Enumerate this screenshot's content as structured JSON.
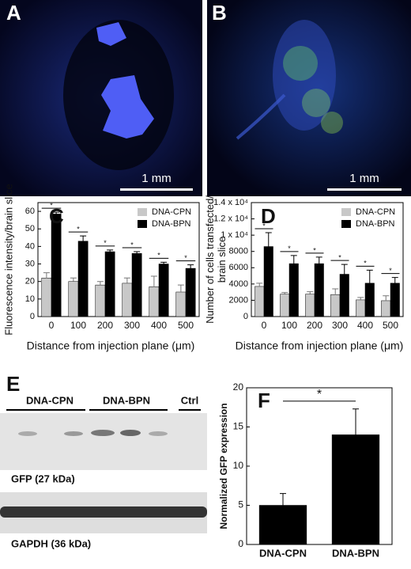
{
  "panels": {
    "A": {
      "label": "A",
      "scale_bar": "1 mm"
    },
    "B": {
      "label": "B",
      "scale_bar": "1 mm"
    },
    "E": {
      "label": "E",
      "lanes": [
        "DNA-CPN",
        "DNA-BPN",
        "Ctrl"
      ],
      "bands": [
        "GFP (27 kDa)",
        "GAPDH (36 kDa)"
      ]
    }
  },
  "chart_data": [
    {
      "type": "bar",
      "label": "C",
      "y_label": "Fluorescence intensity/brain slice",
      "x_label": "Distance from injection plane (μm)",
      "categories": [
        "0",
        "100",
        "200",
        "300",
        "400",
        "500"
      ],
      "series": [
        {
          "name": "DNA-CPN",
          "color": "#c8c8c8",
          "values": [
            22,
            20,
            18,
            19,
            17,
            14
          ],
          "errors": [
            3,
            2,
            2,
            3,
            6,
            4
          ]
        },
        {
          "name": "DNA-BPN",
          "color": "#000000",
          "values": [
            58.5,
            43,
            37,
            36,
            30,
            27.5
          ],
          "errors": [
            1,
            3,
            1,
            1,
            1,
            2
          ]
        }
      ],
      "annotations": [
        "*",
        "*",
        "*",
        "*",
        "*",
        "*"
      ],
      "ylim": [
        0,
        65
      ],
      "yticks": [
        0,
        10,
        20,
        30,
        40,
        50,
        60
      ],
      "legend": "top-right"
    },
    {
      "type": "bar",
      "label": "D",
      "y_label": "Number of cells transfected/ brain slice",
      "x_label": "Distance from injection plane (μm)",
      "categories": [
        "0",
        "100",
        "200",
        "300",
        "400",
        "500"
      ],
      "series": [
        {
          "name": "DNA-CPN",
          "color": "#c8c8c8",
          "values": [
            3700,
            2750,
            2750,
            2700,
            2050,
            1950
          ],
          "errors": [
            400,
            200,
            300,
            700,
            300,
            600
          ]
        },
        {
          "name": "DNA-BPN",
          "color": "#000000",
          "values": [
            8600,
            6500,
            6500,
            5200,
            4100,
            4100
          ],
          "errors": [
            1700,
            1000,
            800,
            1200,
            1600,
            700
          ]
        }
      ],
      "annotations": [
        "*",
        "*",
        "*",
        "*",
        "*",
        "*"
      ],
      "ylim": [
        0,
        14000
      ],
      "yticks": [
        0,
        2000,
        4000,
        6000,
        8000,
        {
          "value": 10000,
          "label": "1 x 10⁴"
        },
        {
          "value": 12000,
          "label": "1.2 x 10⁴"
        },
        {
          "value": 14000,
          "label": "1.4 x 10⁴"
        }
      ],
      "legend": "top-right"
    },
    {
      "type": "bar",
      "label": "F",
      "y_label": "Normalized GFP expression",
      "categories": [
        "DNA-CPN",
        "DNA-BPN"
      ],
      "color": "#000000",
      "values": [
        5,
        14
      ],
      "errors": [
        1.5,
        3.3
      ],
      "annotations": [
        "*"
      ],
      "ylim": [
        0,
        20
      ],
      "yticks": [
        0,
        5,
        10,
        15,
        20
      ]
    }
  ]
}
